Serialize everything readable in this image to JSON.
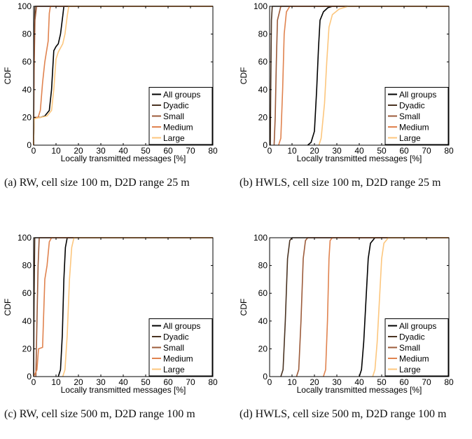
{
  "chart_data": [
    {
      "type": "line",
      "caption": "(a) RW, cell size 100 m, D2D range 25 m",
      "xlabel": "Locally transmitted messages [%]",
      "ylabel": "CDF",
      "xlim": [
        0,
        80
      ],
      "ylim": [
        0,
        100
      ],
      "xticks": [
        "0",
        "10",
        "20",
        "30",
        "40",
        "50",
        "60",
        "70",
        "80"
      ],
      "yticks": [
        "0",
        "20",
        "40",
        "60",
        "80",
        "100"
      ],
      "grid": false,
      "legend_position": "bottom-right",
      "series": [
        {
          "name": "All groups",
          "color": "#000000",
          "points": [
            [
              0,
              0
            ],
            [
              0.2,
              20
            ],
            [
              3,
              20
            ],
            [
              5,
              21
            ],
            [
              7,
              25
            ],
            [
              8,
              40
            ],
            [
              9,
              68
            ],
            [
              10,
              71
            ],
            [
              11,
              73
            ],
            [
              12,
              80
            ],
            [
              13,
              93
            ],
            [
              13.5,
              100
            ],
            [
              80,
              100
            ]
          ]
        },
        {
          "name": "Dyadic",
          "color": "#4a3322",
          "points": [
            [
              0,
              0
            ],
            [
              0.1,
              40
            ],
            [
              0.3,
              80
            ],
            [
              0.6,
              100
            ],
            [
              80,
              100
            ]
          ]
        },
        {
          "name": "Small",
          "color": "#9c5b3a",
          "points": [
            [
              0,
              0
            ],
            [
              0.2,
              50
            ],
            [
              0.6,
              90
            ],
            [
              1.3,
              100
            ],
            [
              80,
              100
            ]
          ]
        },
        {
          "name": "Medium",
          "color": "#e0834f",
          "points": [
            [
              0,
              0
            ],
            [
              0.2,
              20
            ],
            [
              2,
              20
            ],
            [
              3,
              25
            ],
            [
              4,
              45
            ],
            [
              5,
              60
            ],
            [
              6,
              70
            ],
            [
              6.5,
              75
            ],
            [
              7,
              95
            ],
            [
              7.5,
              100
            ],
            [
              80,
              100
            ]
          ]
        },
        {
          "name": "Large",
          "color": "#fcc67d",
          "points": [
            [
              0,
              0
            ],
            [
              0.2,
              19
            ],
            [
              3,
              20
            ],
            [
              6,
              21
            ],
            [
              8,
              25
            ],
            [
              9,
              40
            ],
            [
              10,
              62
            ],
            [
              11,
              67
            ],
            [
              12,
              70
            ],
            [
              13,
              73
            ],
            [
              14,
              80
            ],
            [
              15,
              93
            ],
            [
              15.7,
              100
            ],
            [
              80,
              100
            ]
          ]
        }
      ]
    },
    {
      "type": "line",
      "caption": "(b) HWLS, cell size 100 m, D2D range 25 m",
      "xlabel": "Locally transmitted messages [%]",
      "ylabel": "CDF",
      "xlim": [
        0,
        80
      ],
      "ylim": [
        0,
        100
      ],
      "xticks": [
        "0",
        "10",
        "20",
        "30",
        "40",
        "50",
        "60",
        "70",
        "80"
      ],
      "yticks": [
        "0",
        "20",
        "40",
        "60",
        "80",
        "100"
      ],
      "grid": false,
      "legend_position": "bottom-right",
      "series": [
        {
          "name": "All groups",
          "color": "#000000",
          "points": [
            [
              17,
              0
            ],
            [
              18.5,
              2
            ],
            [
              20,
              10
            ],
            [
              21,
              40
            ],
            [
              21.8,
              70
            ],
            [
              22.5,
              90
            ],
            [
              24,
              96
            ],
            [
              26,
              99
            ],
            [
              28,
              100
            ],
            [
              80,
              100
            ]
          ]
        },
        {
          "name": "Dyadic",
          "color": "#4a3322",
          "points": [
            [
              0.3,
              0
            ],
            [
              0.5,
              40
            ],
            [
              0.8,
              90
            ],
            [
              1.2,
              100
            ],
            [
              80,
              100
            ]
          ]
        },
        {
          "name": "Small",
          "color": "#9c5b3a",
          "points": [
            [
              2,
              0
            ],
            [
              2.5,
              20
            ],
            [
              3,
              60
            ],
            [
              3.5,
              90
            ],
            [
              5,
              100
            ],
            [
              80,
              100
            ]
          ]
        },
        {
          "name": "Medium",
          "color": "#e0834f",
          "points": [
            [
              4,
              0
            ],
            [
              5,
              5
            ],
            [
              5.8,
              40
            ],
            [
              6.5,
              80
            ],
            [
              7.5,
              96
            ],
            [
              9,
              100
            ],
            [
              80,
              100
            ]
          ]
        },
        {
          "name": "Large",
          "color": "#fcc67d",
          "points": [
            [
              22,
              0
            ],
            [
              23,
              5
            ],
            [
              24.5,
              30
            ],
            [
              25.5,
              60
            ],
            [
              26.5,
              85
            ],
            [
              28,
              94
            ],
            [
              31,
              98
            ],
            [
              35,
              100
            ],
            [
              80,
              100
            ]
          ]
        }
      ]
    },
    {
      "type": "line",
      "caption": "(c) RW, cell size 500 m, D2D range 100 m",
      "xlabel": "Locally transmitted messages [%]",
      "ylabel": "CDF",
      "xlim": [
        0,
        80
      ],
      "ylim": [
        0,
        100
      ],
      "xticks": [
        "0",
        "10",
        "20",
        "30",
        "40",
        "50",
        "60",
        "70",
        "80"
      ],
      "yticks": [
        "0",
        "20",
        "40",
        "60",
        "80",
        "100"
      ],
      "grid": false,
      "legend_position": "bottom-right",
      "series": [
        {
          "name": "All groups",
          "color": "#000000",
          "points": [
            [
              11,
              0
            ],
            [
              12,
              5
            ],
            [
              12.8,
              30
            ],
            [
              13.5,
              70
            ],
            [
              14.2,
              93
            ],
            [
              15,
              100
            ],
            [
              80,
              100
            ]
          ]
        },
        {
          "name": "Dyadic",
          "color": "#4a3322",
          "points": [
            [
              0,
              0
            ],
            [
              0.2,
              50
            ],
            [
              0.5,
              100
            ],
            [
              80,
              100
            ]
          ]
        },
        {
          "name": "Small",
          "color": "#9c5b3a",
          "points": [
            [
              1,
              0
            ],
            [
              1.5,
              40
            ],
            [
              2,
              80
            ],
            [
              2.5,
              100
            ],
            [
              80,
              100
            ]
          ]
        },
        {
          "name": "Medium",
          "color": "#e0834f",
          "points": [
            [
              0,
              0
            ],
            [
              1.5,
              5
            ],
            [
              2.2,
              20
            ],
            [
              4,
              21
            ],
            [
              5,
              70
            ],
            [
              6,
              80
            ],
            [
              7,
              97
            ],
            [
              8,
              100
            ],
            [
              80,
              100
            ]
          ]
        },
        {
          "name": "Large",
          "color": "#fcc67d",
          "points": [
            [
              13,
              0
            ],
            [
              14,
              5
            ],
            [
              15,
              30
            ],
            [
              16,
              70
            ],
            [
              17,
              93
            ],
            [
              18,
              100
            ],
            [
              80,
              100
            ]
          ]
        }
      ]
    },
    {
      "type": "line",
      "caption": "(d) HWLS, cell size 500 m, D2D range 100 m",
      "xlabel": "Locally transmitted messages [%]",
      "ylabel": "CDF",
      "xlim": [
        0,
        80
      ],
      "ylim": [
        0,
        100
      ],
      "xticks": [
        "0",
        "10",
        "20",
        "30",
        "40",
        "50",
        "60",
        "70",
        "80"
      ],
      "yticks": [
        "0",
        "20",
        "40",
        "60",
        "80",
        "100"
      ],
      "grid": false,
      "legend_position": "bottom-right",
      "series": [
        {
          "name": "All groups",
          "color": "#000000",
          "points": [
            [
              40,
              0
            ],
            [
              41,
              5
            ],
            [
              42,
              25
            ],
            [
              43,
              55
            ],
            [
              44,
              85
            ],
            [
              45,
              96
            ],
            [
              47,
              100
            ],
            [
              80,
              100
            ]
          ]
        },
        {
          "name": "Dyadic",
          "color": "#4a3322",
          "points": [
            [
              5,
              0
            ],
            [
              6,
              5
            ],
            [
              7,
              40
            ],
            [
              8,
              85
            ],
            [
              9,
              98
            ],
            [
              10,
              100
            ],
            [
              80,
              100
            ]
          ]
        },
        {
          "name": "Small",
          "color": "#9c5b3a",
          "points": [
            [
              12,
              0
            ],
            [
              13,
              5
            ],
            [
              14,
              40
            ],
            [
              15,
              85
            ],
            [
              16,
              98
            ],
            [
              17,
              100
            ],
            [
              80,
              100
            ]
          ]
        },
        {
          "name": "Medium",
          "color": "#e0834f",
          "points": [
            [
              24,
              0
            ],
            [
              25,
              5
            ],
            [
              25.8,
              40
            ],
            [
              26.5,
              85
            ],
            [
              27,
              98
            ],
            [
              28,
              100
            ],
            [
              80,
              100
            ]
          ]
        },
        {
          "name": "Large",
          "color": "#fcc67d",
          "points": [
            [
              46,
              0
            ],
            [
              47,
              5
            ],
            [
              48,
              25
            ],
            [
              49,
              55
            ],
            [
              50,
              85
            ],
            [
              51,
              96
            ],
            [
              53,
              100
            ],
            [
              80,
              100
            ]
          ]
        }
      ]
    }
  ]
}
